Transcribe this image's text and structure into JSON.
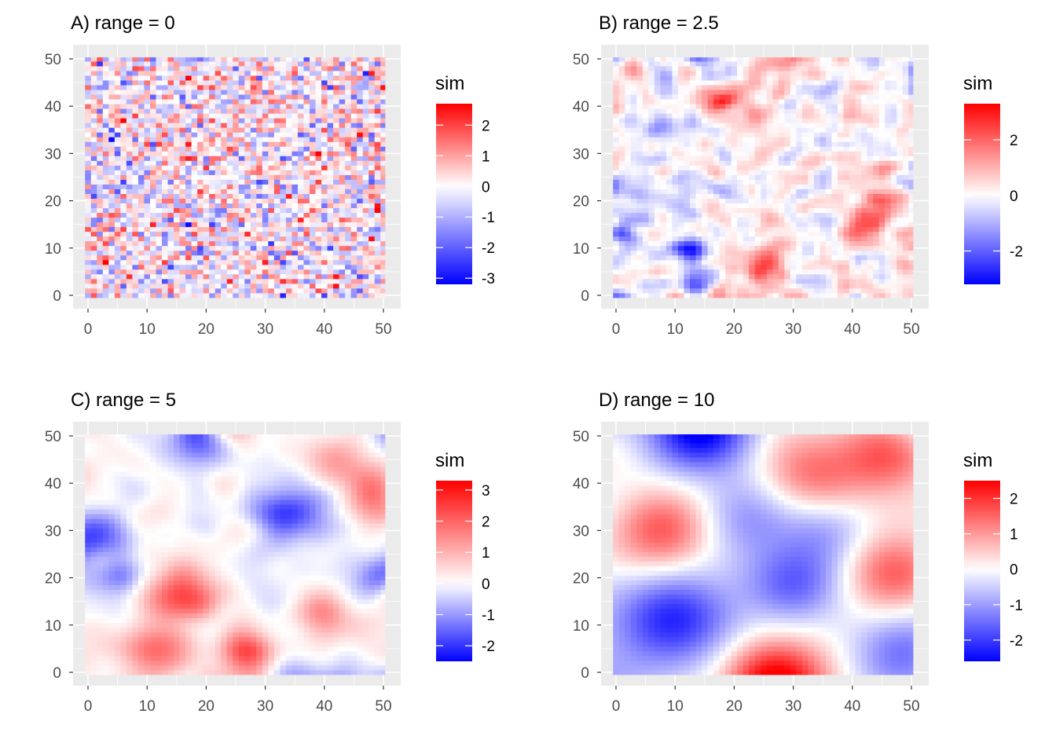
{
  "chart_data": [
    {
      "type": "heatmap",
      "title": "A) range = 0",
      "xlabel": "",
      "ylabel": "",
      "xlim": [
        0,
        50
      ],
      "ylim": [
        0,
        50
      ],
      "x_ticks": [
        0,
        10,
        20,
        30,
        40,
        50
      ],
      "y_ticks": [
        0,
        10,
        20,
        30,
        40,
        50
      ],
      "x_tick_labels": [
        "0",
        "10",
        "20",
        "30",
        "40",
        "50"
      ],
      "y_tick_labels": [
        "0",
        "10",
        "20",
        "30",
        "40",
        "50"
      ],
      "grid": true,
      "legend": {
        "title": "sim",
        "placement": "right",
        "min": -3.2,
        "max": 2.7,
        "ticks": [
          -3,
          -2,
          -1,
          0,
          1,
          2
        ],
        "tick_labels": [
          "-3",
          "-2",
          "-1",
          "0",
          "1",
          "2"
        ]
      },
      "colors": {
        "low": "#0000ff",
        "mid": "#ffffff",
        "high": "#ff0000"
      },
      "field": {
        "range": 0,
        "seed": 11,
        "modes": [],
        "bumps": []
      }
    },
    {
      "type": "heatmap",
      "title": "B) range = 2.5",
      "xlabel": "",
      "ylabel": "",
      "xlim": [
        0,
        50
      ],
      "ylim": [
        0,
        50
      ],
      "x_ticks": [
        0,
        10,
        20,
        30,
        40,
        50
      ],
      "y_ticks": [
        0,
        10,
        20,
        30,
        40,
        50
      ],
      "x_tick_labels": [
        "0",
        "10",
        "20",
        "30",
        "40",
        "50"
      ],
      "y_tick_labels": [
        "0",
        "10",
        "20",
        "30",
        "40",
        "50"
      ],
      "grid": true,
      "legend": {
        "title": "sim",
        "placement": "right",
        "min": -3.2,
        "max": 3.3,
        "ticks": [
          -2,
          0,
          2
        ],
        "tick_labels": [
          "-2",
          "0",
          "2"
        ]
      },
      "colors": {
        "low": "#0000ff",
        "mid": "#ffffff",
        "high": "#ff0000"
      },
      "field": {
        "range": 2.5,
        "seed": 23,
        "modes": [],
        "bumps": [
          {
            "x": 19,
            "y": 41,
            "v": 2.2,
            "s": 2.5
          },
          {
            "x": 45,
            "y": 19,
            "v": 1.8,
            "s": 3
          },
          {
            "x": 41,
            "y": 15,
            "v": 1.5,
            "s": 2.5
          },
          {
            "x": 25,
            "y": 6,
            "v": 1.6,
            "s": 3
          },
          {
            "x": 13,
            "y": 10,
            "v": -2.8,
            "s": 2
          },
          {
            "x": 13,
            "y": 2,
            "v": -2.4,
            "s": 2
          },
          {
            "x": 28,
            "y": 49,
            "v": 1.2,
            "s": 3
          },
          {
            "x": 2,
            "y": 13,
            "v": -1.2,
            "s": 2.5
          }
        ]
      }
    },
    {
      "type": "heatmap",
      "title": "C) range = 5",
      "xlabel": "",
      "ylabel": "",
      "xlim": [
        0,
        50
      ],
      "ylim": [
        0,
        50
      ],
      "x_ticks": [
        0,
        10,
        20,
        30,
        40,
        50
      ],
      "y_ticks": [
        0,
        10,
        20,
        30,
        40,
        50
      ],
      "x_tick_labels": [
        "0",
        "10",
        "20",
        "30",
        "40",
        "50"
      ],
      "y_tick_labels": [
        "0",
        "10",
        "20",
        "30",
        "40",
        "50"
      ],
      "grid": true,
      "legend": {
        "title": "sim",
        "placement": "right",
        "min": -2.5,
        "max": 3.3,
        "ticks": [
          -2,
          -1,
          0,
          1,
          2,
          3
        ],
        "tick_labels": [
          "-2",
          "-1",
          "0",
          "1",
          "2",
          "3"
        ]
      },
      "colors": {
        "low": "#0000ff",
        "mid": "#ffffff",
        "high": "#ff0000"
      },
      "field": {
        "range": 5,
        "seed": 37,
        "modes": [],
        "bumps": [
          {
            "x": 16,
            "y": 16,
            "v": 2.2,
            "s": 4
          },
          {
            "x": 27,
            "y": 5,
            "v": 2.6,
            "s": 3
          },
          {
            "x": 12,
            "y": 5,
            "v": 1.6,
            "s": 4
          },
          {
            "x": 48,
            "y": 38,
            "v": 1.8,
            "s": 4
          },
          {
            "x": 40,
            "y": 13,
            "v": 1.4,
            "s": 3.5
          },
          {
            "x": 33,
            "y": 33,
            "v": -1.8,
            "s": 4
          },
          {
            "x": 1,
            "y": 29,
            "v": -1.6,
            "s": 3.5
          },
          {
            "x": 18,
            "y": 49,
            "v": -1.4,
            "s": 4
          },
          {
            "x": 6,
            "y": 20,
            "v": -1.2,
            "s": 3
          },
          {
            "x": 49,
            "y": 20,
            "v": -1.4,
            "s": 3.5
          },
          {
            "x": 42,
            "y": 45,
            "v": 1.2,
            "s": 3.5
          }
        ]
      }
    },
    {
      "type": "heatmap",
      "title": "D) range = 10",
      "xlabel": "",
      "ylabel": "",
      "xlim": [
        0,
        50
      ],
      "ylim": [
        0,
        50
      ],
      "x_ticks": [
        0,
        10,
        20,
        30,
        40,
        50
      ],
      "y_ticks": [
        0,
        10,
        20,
        30,
        40,
        50
      ],
      "x_tick_labels": [
        "0",
        "10",
        "20",
        "30",
        "40",
        "50"
      ],
      "y_tick_labels": [
        "0",
        "10",
        "20",
        "30",
        "40",
        "50"
      ],
      "grid": true,
      "legend": {
        "title": "sim",
        "placement": "right",
        "min": -2.6,
        "max": 2.5,
        "ticks": [
          -2,
          -1,
          0,
          1,
          2
        ],
        "tick_labels": [
          "-2",
          "-1",
          "0",
          "1",
          "2"
        ]
      },
      "colors": {
        "low": "#0000ff",
        "mid": "#ffffff",
        "high": "#ff0000"
      },
      "field": {
        "range": 10,
        "seed": 0,
        "modes": [],
        "bumps": [
          {
            "x": 14,
            "y": 51,
            "v": -2.6,
            "s": 6
          },
          {
            "x": 10,
            "y": 11,
            "v": -2.2,
            "s": 7
          },
          {
            "x": 30,
            "y": 19,
            "v": -1.6,
            "s": 6
          },
          {
            "x": 49,
            "y": 4,
            "v": -1.6,
            "s": 6
          },
          {
            "x": 8,
            "y": 30,
            "v": 1.7,
            "s": 6
          },
          {
            "x": 27,
            "y": -2,
            "v": 2.6,
            "s": 6
          },
          {
            "x": 47,
            "y": 21,
            "v": 1.6,
            "s": 6
          },
          {
            "x": 46,
            "y": 46,
            "v": 1.6,
            "s": 5.5
          },
          {
            "x": 33,
            "y": 42,
            "v": 1.4,
            "s": 6
          },
          {
            "x": 22,
            "y": 33,
            "v": -1.2,
            "s": 6
          },
          {
            "x": 36,
            "y": 30,
            "v": -0.8,
            "s": 5
          }
        ]
      }
    }
  ]
}
